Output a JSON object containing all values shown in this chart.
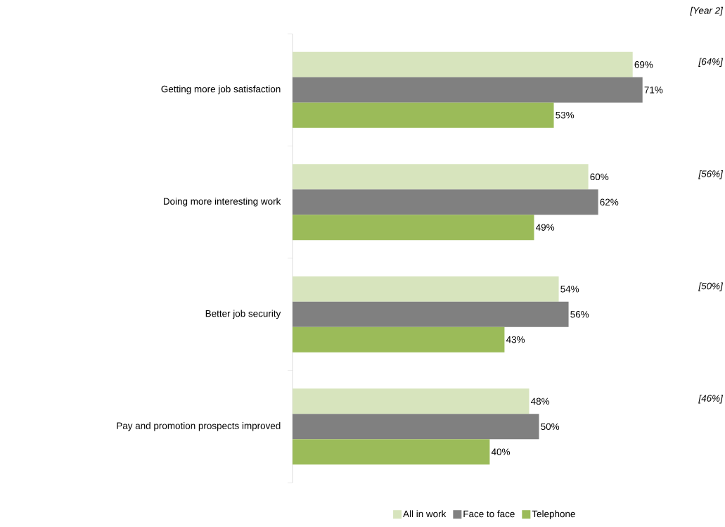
{
  "chart_data": {
    "type": "bar",
    "orientation": "horizontal",
    "categories": [
      "Getting more job satisfaction",
      "Doing more interesting work",
      "Better job security",
      "Pay and promotion prospects improved"
    ],
    "series": [
      {
        "name": "All in work",
        "color": "#d7e4bd",
        "values": [
          69,
          60,
          54,
          48
        ],
        "value_labels": [
          "69%",
          "60%",
          "54%",
          "48%"
        ]
      },
      {
        "name": "Face to face",
        "color": "#808080",
        "values": [
          71,
          62,
          56,
          50
        ],
        "value_labels": [
          "71%",
          "62%",
          "56%",
          "50%"
        ]
      },
      {
        "name": "Telephone",
        "color": "#9bbb59",
        "values": [
          53,
          49,
          43,
          40
        ],
        "value_labels": [
          "53%",
          "49%",
          "43%",
          "40%"
        ]
      }
    ],
    "tick_labels": "y",
    "legend": "bottom",
    "annotations": [
      "[Year 2]",
      "[64%]",
      "[56%]",
      "[50%]",
      "[46%]"
    ]
  }
}
